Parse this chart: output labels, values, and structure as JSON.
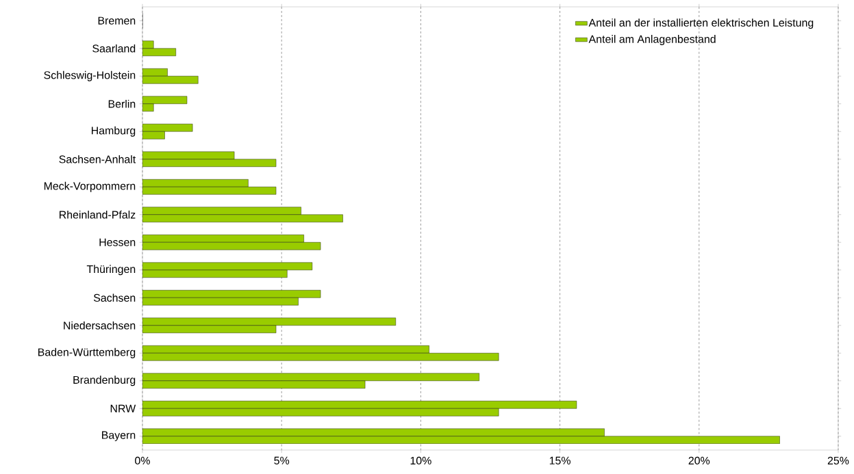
{
  "chart_data": {
    "type": "bar",
    "orientation": "horizontal",
    "categories": [
      "Bremen",
      "Saarland",
      "Schleswig-Holstein",
      "Berlin",
      "Hamburg",
      "Sachsen-Anhalt",
      "Meck-Vorpommern",
      "Rheinland-Pfalz",
      "Hessen",
      "Thüringen",
      "Sachsen",
      "Niedersachsen",
      "Baden-Württemberg",
      "Brandenburg",
      "NRW",
      "Bayern"
    ],
    "series": [
      {
        "name": "Anteil an der installierten elektrischen Leistung",
        "color": "#99cc00",
        "values": [
          0,
          0.4,
          0.9,
          1.6,
          1.8,
          3.3,
          3.8,
          5.7,
          5.8,
          6.1,
          6.4,
          9.1,
          10.3,
          12.1,
          15.6,
          16.6
        ]
      },
      {
        "name": "Anteil am Anlagenbestand",
        "color": "#99cc00",
        "values": [
          0,
          1.2,
          2.0,
          0.4,
          0.8,
          4.8,
          4.8,
          7.2,
          6.4,
          5.2,
          5.6,
          4.8,
          12.8,
          8.0,
          12.8,
          22.9
        ]
      }
    ],
    "xlim": [
      0,
      25
    ],
    "xticks": [
      {
        "value": 0,
        "label": "0%"
      },
      {
        "value": 5,
        "label": "5%"
      },
      {
        "value": 10,
        "label": "10%"
      },
      {
        "value": 15,
        "label": "15%"
      },
      {
        "value": 20,
        "label": "20%"
      },
      {
        "value": 25,
        "label": "25%"
      }
    ],
    "grid": "x",
    "legend": "top right"
  }
}
